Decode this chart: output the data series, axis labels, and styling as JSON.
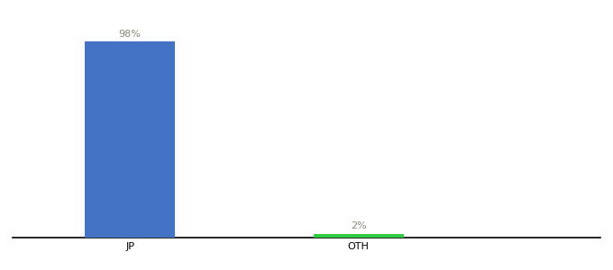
{
  "categories": [
    "JP",
    "OTH"
  ],
  "values": [
    98,
    2
  ],
  "bar_colors": [
    "#4472c4",
    "#2ecc40"
  ],
  "label_colors": [
    "#888877",
    "#888877"
  ],
  "labels": [
    "98%",
    "2%"
  ],
  "ylim": [
    0,
    108
  ],
  "background_color": "#ffffff",
  "bar_width": 0.13,
  "label_fontsize": 8,
  "tick_fontsize": 8,
  "x_positions": [
    0.22,
    0.55
  ],
  "xlim": [
    0.05,
    0.9
  ]
}
